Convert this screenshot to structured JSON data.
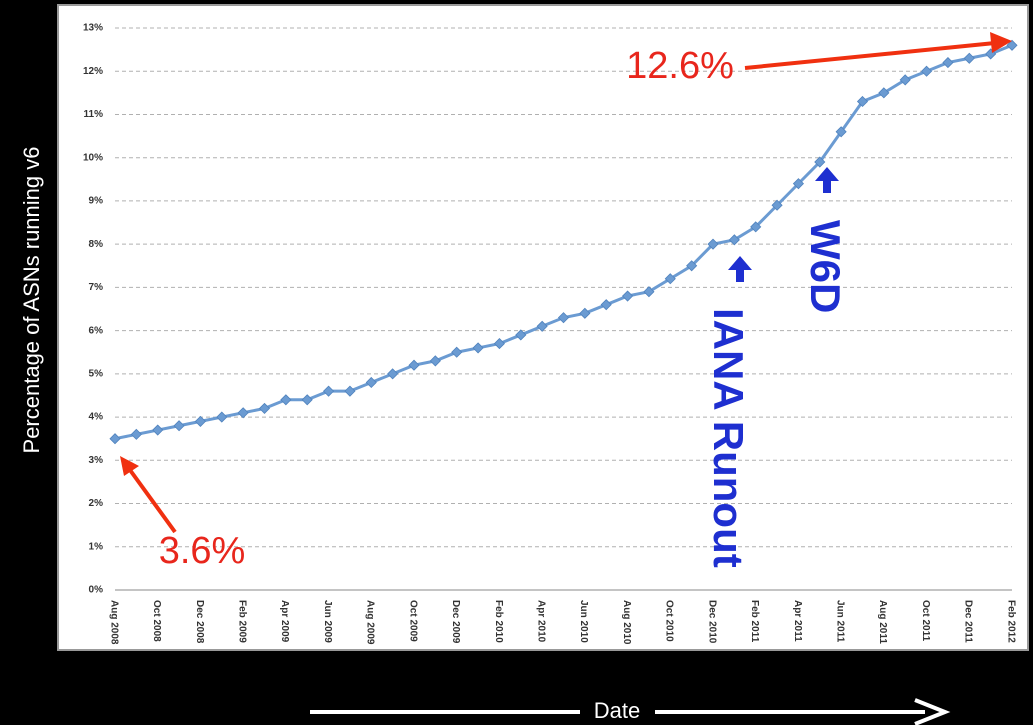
{
  "chart_data": {
    "type": "line",
    "y_label": "Percentage of ASNs running v6",
    "x_label": "Date",
    "categories": [
      "Aug 2008",
      null,
      "Oct 2008",
      null,
      "Dec 2008",
      null,
      "Feb 2009",
      null,
      "Apr 2009",
      null,
      "Jun 2009",
      null,
      "Aug 2009",
      null,
      "Oct 2009",
      null,
      "Dec 2009",
      null,
      "Feb 2010",
      null,
      "Apr 2010",
      null,
      "Jun 2010",
      null,
      "Aug 2010",
      null,
      "Oct 2010",
      null,
      "Dec 2010",
      null,
      "Feb 2011",
      null,
      "Apr 2011",
      null,
      "Jun 2011",
      null,
      "Aug 2011",
      null,
      "Oct 2011",
      null,
      "Dec 2011",
      null,
      "Feb 2012"
    ],
    "series": [
      {
        "color": "#6b9bd2",
        "values": [
          3.5,
          3.6,
          3.7,
          3.8,
          3.9,
          4.0,
          4.1,
          4.2,
          4.4,
          4.4,
          4.6,
          4.6,
          4.8,
          5.0,
          5.2,
          5.3,
          5.5,
          5.6,
          5.7,
          5.9,
          6.1,
          6.3,
          6.4,
          6.6,
          6.8,
          6.9,
          7.2,
          7.5,
          8.0,
          8.1,
          8.4,
          8.9,
          9.4,
          9.9,
          10.6,
          11.3,
          11.5,
          11.8,
          12.0,
          12.2,
          12.3,
          12.4,
          12.6
        ]
      }
    ],
    "ylim": [
      0,
      13
    ],
    "yticks": [
      {
        "value": 0,
        "label": "0%"
      },
      {
        "value": 1,
        "label": "1%"
      },
      {
        "value": 2,
        "label": "2%"
      },
      {
        "value": 3,
        "label": "3%"
      },
      {
        "value": 4,
        "label": "4%"
      },
      {
        "value": 5,
        "label": "5%"
      },
      {
        "value": 6,
        "label": "6%"
      },
      {
        "value": 7,
        "label": "7%"
      },
      {
        "value": 8,
        "label": "8%"
      },
      {
        "value": 9,
        "label": "9%"
      },
      {
        "value": 10,
        "label": "10%"
      },
      {
        "value": 11,
        "label": "11%"
      },
      {
        "value": 12,
        "label": "12%"
      },
      {
        "value": 13,
        "label": "13%"
      }
    ],
    "grid": true,
    "annotations": [
      "12.6%",
      "3.6%",
      "IANA Runout",
      "W6D"
    ]
  }
}
